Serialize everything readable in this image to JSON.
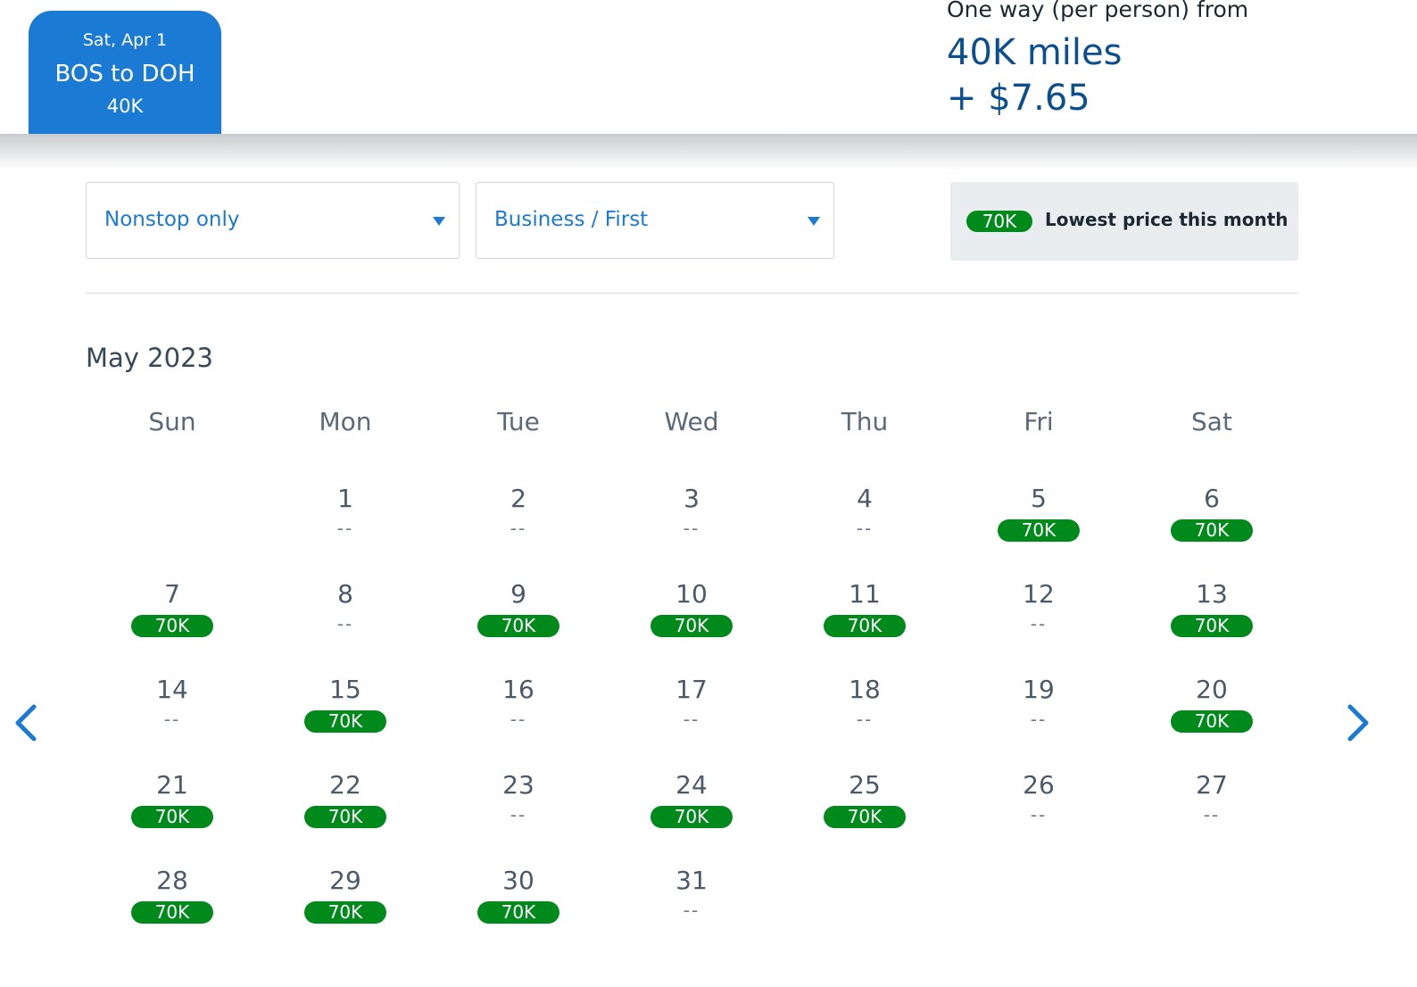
{
  "flight_tab": {
    "date": "Sat, Apr 1",
    "route": "BOS to DOH",
    "price": "40K"
  },
  "fare": {
    "caption": "One way (per person) from",
    "miles": "40K miles",
    "cash": "+ $7.65"
  },
  "filters": {
    "stops": "Nonstop only",
    "cabin": "Business / First"
  },
  "legend": {
    "badge": "70K",
    "text": "Lowest price this month"
  },
  "calendar": {
    "month": "May 2023",
    "weekdays": [
      "Sun",
      "Mon",
      "Tue",
      "Wed",
      "Thu",
      "Fri",
      "Sat"
    ],
    "first_weekday_index": 1,
    "empty_text": "--",
    "days": [
      {
        "day": "1",
        "price": null
      },
      {
        "day": "2",
        "price": null
      },
      {
        "day": "3",
        "price": null
      },
      {
        "day": "4",
        "price": null
      },
      {
        "day": "5",
        "price": "70K"
      },
      {
        "day": "6",
        "price": "70K"
      },
      {
        "day": "7",
        "price": "70K"
      },
      {
        "day": "8",
        "price": null
      },
      {
        "day": "9",
        "price": "70K"
      },
      {
        "day": "10",
        "price": "70K"
      },
      {
        "day": "11",
        "price": "70K"
      },
      {
        "day": "12",
        "price": null
      },
      {
        "day": "13",
        "price": "70K"
      },
      {
        "day": "14",
        "price": null
      },
      {
        "day": "15",
        "price": "70K"
      },
      {
        "day": "16",
        "price": null
      },
      {
        "day": "17",
        "price": null
      },
      {
        "day": "18",
        "price": null
      },
      {
        "day": "19",
        "price": null
      },
      {
        "day": "20",
        "price": "70K"
      },
      {
        "day": "21",
        "price": "70K"
      },
      {
        "day": "22",
        "price": "70K"
      },
      {
        "day": "23",
        "price": null
      },
      {
        "day": "24",
        "price": "70K"
      },
      {
        "day": "25",
        "price": "70K"
      },
      {
        "day": "26",
        "price": null
      },
      {
        "day": "27",
        "price": null
      },
      {
        "day": "28",
        "price": "70K"
      },
      {
        "day": "29",
        "price": "70K"
      },
      {
        "day": "30",
        "price": "70K"
      },
      {
        "day": "31",
        "price": null
      }
    ]
  },
  "nav": {
    "prev_icon": "chevron-left-icon",
    "next_icon": "chevron-right-icon"
  },
  "colors": {
    "primary_blue": "#1a7ad4",
    "price_green": "#018a1c",
    "fare_navy": "#0b4f8f"
  }
}
